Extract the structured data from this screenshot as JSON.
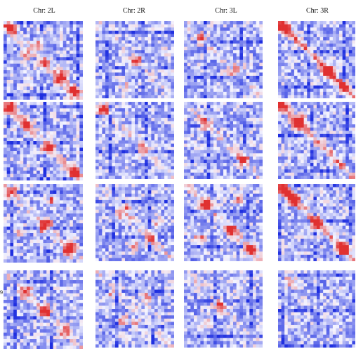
{
  "chart_data": {
    "type": "heatmap",
    "columns": [
      "Chr: 2L",
      "Chr: 2R",
      "Chr: 3L",
      "Chr: 3R"
    ],
    "row_labels": [
      "",
      "",
      "",
      "9"
    ],
    "color_scale": {
      "low": "#1f2fe0",
      "mid": "#f4f4ff",
      "high": "#e03030"
    },
    "panels": [
      {
        "row": 1,
        "col": "Chr: 2L",
        "hotspots": [
          [
            0.08,
            0.08,
            0.9
          ],
          [
            0.3,
            0.45,
            0.6
          ],
          [
            0.7,
            0.75,
            0.7
          ],
          [
            0.9,
            0.9,
            0.8
          ],
          [
            0.5,
            0.55,
            0.5
          ]
        ],
        "diag": 0.4
      },
      {
        "row": 1,
        "col": "Chr: 2R",
        "hotspots": [
          [
            0.55,
            0.5,
            0.5
          ],
          [
            0.85,
            0.4,
            0.4
          ]
        ],
        "diag": 0.2
      },
      {
        "row": 1,
        "col": "Chr: 3L",
        "hotspots": [
          [
            0.25,
            0.2,
            0.4
          ],
          [
            0.7,
            0.6,
            0.4
          ]
        ],
        "diag": 0.2
      },
      {
        "row": 1,
        "col": "Chr: 3R",
        "hotspots": [
          [
            0.08,
            0.08,
            0.8
          ],
          [
            0.65,
            0.65,
            0.8
          ],
          [
            0.85,
            0.85,
            0.6
          ]
        ],
        "diag": 0.8
      },
      {
        "row": 2,
        "col": "Chr: 2L",
        "hotspots": [
          [
            0.08,
            0.08,
            0.9
          ],
          [
            0.6,
            0.55,
            0.7
          ],
          [
            0.9,
            0.9,
            0.9
          ],
          [
            0.3,
            0.3,
            0.5
          ]
        ],
        "diag": 0.4
      },
      {
        "row": 2,
        "col": "Chr: 2R",
        "hotspots": [
          [
            0.1,
            0.1,
            0.5
          ],
          [
            0.65,
            0.6,
            0.5
          ]
        ],
        "diag": 0.2
      },
      {
        "row": 2,
        "col": "Chr: 3L",
        "hotspots": [
          [
            0.3,
            0.25,
            0.4
          ],
          [
            0.75,
            0.75,
            0.6
          ]
        ],
        "diag": 0.3
      },
      {
        "row": 2,
        "col": "Chr: 3R",
        "hotspots": [
          [
            0.3,
            0.25,
            0.9
          ],
          [
            0.05,
            0.05,
            0.5
          ]
        ],
        "diag": 0.7
      },
      {
        "row": 3,
        "col": "Chr: 2L",
        "hotspots": [
          [
            0.55,
            0.5,
            0.8
          ],
          [
            0.2,
            0.6,
            0.6
          ],
          [
            0.8,
            0.85,
            0.7
          ],
          [
            0.1,
            0.1,
            0.5
          ]
        ],
        "diag": 0.3
      },
      {
        "row": 3,
        "col": "Chr: 2R",
        "hotspots": [
          [
            0.3,
            0.4,
            0.5
          ],
          [
            0.7,
            0.7,
            0.5
          ],
          [
            0.5,
            0.8,
            0.5
          ]
        ],
        "diag": 0.3
      },
      {
        "row": 3,
        "col": "Chr: 3L",
        "hotspots": [
          [
            0.3,
            0.25,
            0.8
          ],
          [
            0.6,
            0.6,
            0.6
          ],
          [
            0.85,
            0.85,
            0.7
          ],
          [
            0.2,
            0.7,
            0.6
          ]
        ],
        "diag": 0.4
      },
      {
        "row": 3,
        "col": "Chr: 3R",
        "hotspots": [
          [
            0.08,
            0.08,
            0.9
          ],
          [
            0.2,
            0.2,
            0.8
          ],
          [
            0.5,
            0.5,
            0.8
          ],
          [
            0.85,
            0.85,
            0.9
          ]
        ],
        "diag": 0.6
      },
      {
        "row": 4,
        "col": "Chr: 2L",
        "hotspots": [
          [
            0.55,
            0.5,
            0.6
          ],
          [
            0.25,
            0.3,
            0.5
          ],
          [
            0.8,
            0.75,
            0.4
          ]
        ],
        "diag": 0.3
      },
      {
        "row": 4,
        "col": "Chr: 2R",
        "hotspots": [
          [
            0.2,
            0.3,
            0.4
          ],
          [
            0.65,
            0.35,
            0.5
          ],
          [
            0.5,
            0.7,
            0.4
          ]
        ],
        "diag": 0.2
      },
      {
        "row": 4,
        "col": "Chr: 3L",
        "hotspots": [
          [
            0.45,
            0.45,
            0.4
          ],
          [
            0.7,
            0.3,
            0.3
          ]
        ],
        "diag": 0.2
      },
      {
        "row": 4,
        "col": "Chr: 3R",
        "hotspots": [
          [
            0.15,
            0.15,
            0.3
          ]
        ],
        "diag": 0.1
      }
    ]
  }
}
